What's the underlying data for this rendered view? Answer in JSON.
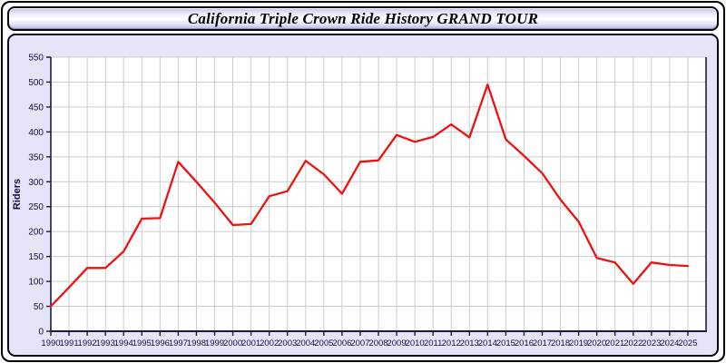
{
  "window": {
    "title": "California Triple Crown Ride History GRAND TOUR"
  },
  "colors": {
    "line": "#ee1111",
    "grid": "#cccccc",
    "axis": "#1a1a4a",
    "tick_text": "#101040",
    "panel_bg": "#e5e5f7",
    "plot_bg": "#ffffff",
    "titlebar_tint": "#c3c3e9"
  },
  "chart_data": {
    "type": "line",
    "title": "California Triple Crown Ride History GRAND TOUR",
    "xlabel": "",
    "ylabel": "Riders",
    "x": [
      1990,
      1991,
      1992,
      1993,
      1994,
      1995,
      1996,
      1997,
      1998,
      1999,
      2000,
      2001,
      2002,
      2003,
      2004,
      2005,
      2006,
      2007,
      2008,
      2009,
      2010,
      2011,
      2012,
      2013,
      2014,
      2015,
      2016,
      2017,
      2018,
      2019,
      2020,
      2021,
      2022,
      2023,
      2024,
      2025
    ],
    "series": [
      {
        "name": "Riders",
        "color": "#ee1111",
        "values": [
          50,
          88,
          127,
          127,
          160,
          226,
          227,
          340,
          300,
          258,
          213,
          215,
          271,
          281,
          342,
          315,
          276,
          340,
          343,
          394,
          380,
          390,
          415,
          389,
          495,
          385,
          352,
          317,
          264,
          220,
          147,
          138,
          95,
          138,
          133,
          131
        ]
      }
    ],
    "ylim": [
      0,
      550
    ],
    "ytick_step": 50,
    "grid": true,
    "legend": false
  }
}
